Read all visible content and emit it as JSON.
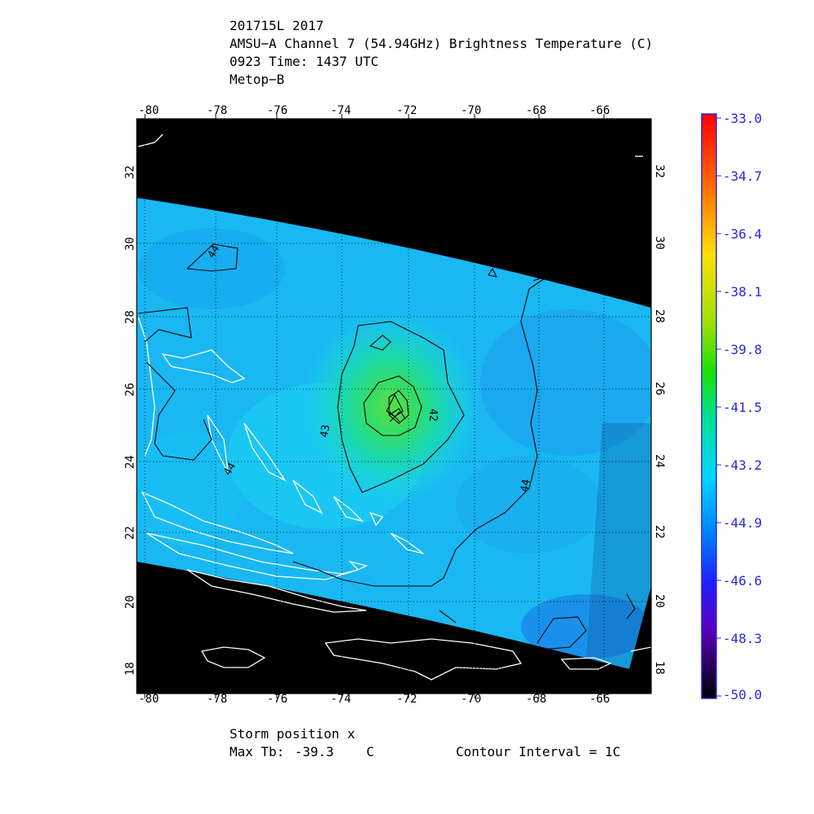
{
  "header": {
    "line1": "201715L 2017",
    "line2": "AMSU−A Channel 7 (54.94GHz) Brightness Temperature (C)",
    "line3": "0923 Time: 1437 UTC",
    "line4": "Metop−B"
  },
  "axes": {
    "lon_top": [
      "-80",
      "-78",
      "-76",
      "-74",
      "-72",
      "-70",
      "-68",
      "-66"
    ],
    "lon_bottom": [
      "-80",
      "-78",
      "-76",
      "-74",
      "-72",
      "-70",
      "-68",
      "-66"
    ],
    "lat_left": [
      "32",
      "30",
      "28",
      "26",
      "24",
      "22",
      "20",
      "18"
    ],
    "lat_right": [
      "32",
      "30",
      "28",
      "26",
      "24",
      "22",
      "20",
      "18"
    ]
  },
  "colorbar": {
    "labels": [
      "-33.0",
      "-34.7",
      "-36.4",
      "-38.1",
      "-39.8",
      "-41.5",
      "-43.2",
      "-44.9",
      "-46.6",
      "-48.3",
      "-50.0"
    ]
  },
  "contour_labels": [
    "44",
    "42",
    "43",
    "44",
    "44"
  ],
  "footer": {
    "storm_position": "Storm position x",
    "max_tb_label": "Max Tb:",
    "max_tb_value": "-39.3",
    "max_tb_unit": "C",
    "contour_interval": "Contour Interval = 1C"
  },
  "colors": {
    "background": "#000000",
    "swath_base": "#19b8f2",
    "warm_core": "#2ce06a",
    "coast": "#ffffff",
    "label_blue": "#2a2ad8"
  }
}
